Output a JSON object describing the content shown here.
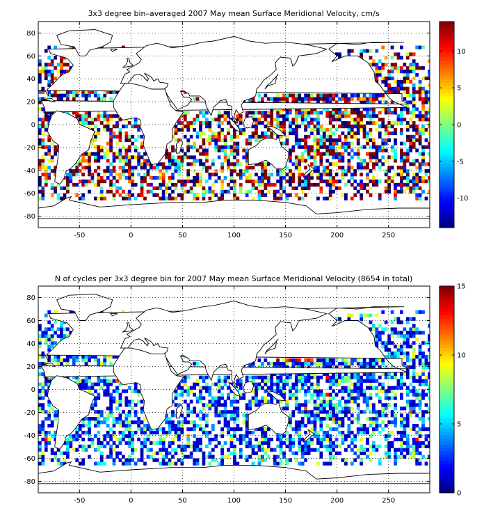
{
  "chart_data": [
    {
      "type": "heatmap",
      "title": "3x3 degree bin–averaged 2007 May mean Surface Meridional Velocity, cm/s",
      "bin_size_deg": 3,
      "xlim": [
        -90,
        290
      ],
      "ylim": [
        -90,
        90
      ],
      "x_ticks": [
        -50,
        0,
        50,
        100,
        150,
        200,
        250
      ],
      "y_ticks": [
        80,
        60,
        40,
        20,
        0,
        -20,
        -40,
        -60,
        -80
      ],
      "grid": true,
      "colormap": "jet",
      "colorbar": {
        "min": -14,
        "max": 14,
        "ticks": [
          10,
          5,
          0,
          -5,
          -10
        ],
        "placement": "right"
      }
    },
    {
      "type": "heatmap",
      "title": "N of cycles per 3x3 degree bin for 2007 May mean Surface Meridional Velocity (8654 in total)",
      "bin_size_deg": 3,
      "total_cycles": 8654,
      "xlim": [
        -90,
        290
      ],
      "ylim": [
        -90,
        90
      ],
      "x_ticks": [
        -50,
        0,
        50,
        100,
        150,
        200,
        250
      ],
      "y_ticks": [
        80,
        60,
        40,
        20,
        0,
        -20,
        -40,
        -60,
        -80
      ],
      "grid": true,
      "colormap": "jet",
      "colorbar": {
        "min": 0,
        "max": 15,
        "ticks": [
          15,
          10,
          5,
          0
        ],
        "placement": "right"
      }
    }
  ]
}
